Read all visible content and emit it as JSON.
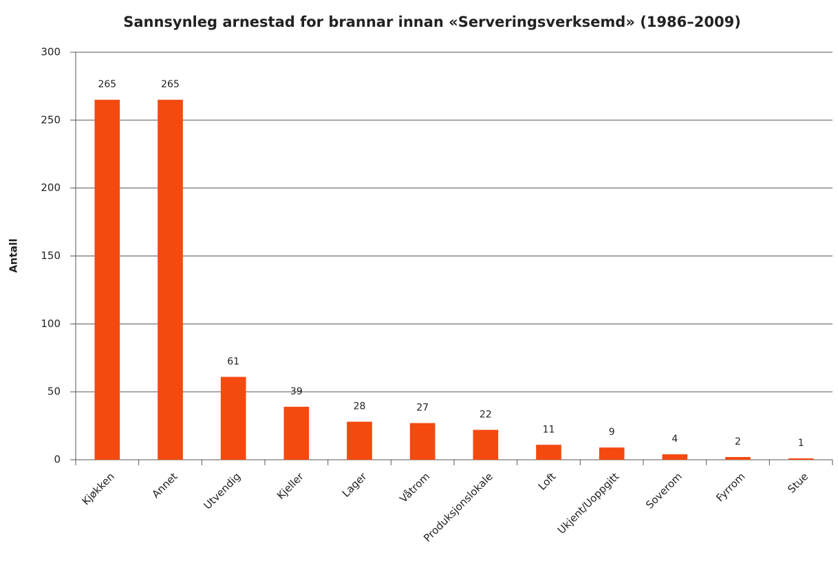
{
  "chart_data": {
    "type": "bar",
    "title": "Sannsynleg arnestad for brannar innan «Serveringsverksemd» (1986–2009)",
    "y_label": "Antall",
    "categories": [
      "Kjøkken",
      "Annet",
      "Utvendig",
      "Kjeller",
      "Lager",
      "Våtrom",
      "Produksjonslokale",
      "Loft",
      "Ukjent/Uoppgitt",
      "Soverom",
      "Fyrrom",
      "Stue"
    ],
    "values": [
      265,
      265,
      61,
      39,
      28,
      27,
      22,
      11,
      9,
      4,
      2,
      1
    ],
    "color": "#f4490f",
    "ylim": [
      0,
      300
    ],
    "yticks": [
      0,
      50,
      100,
      150,
      200,
      250,
      300
    ],
    "grid": true
  }
}
